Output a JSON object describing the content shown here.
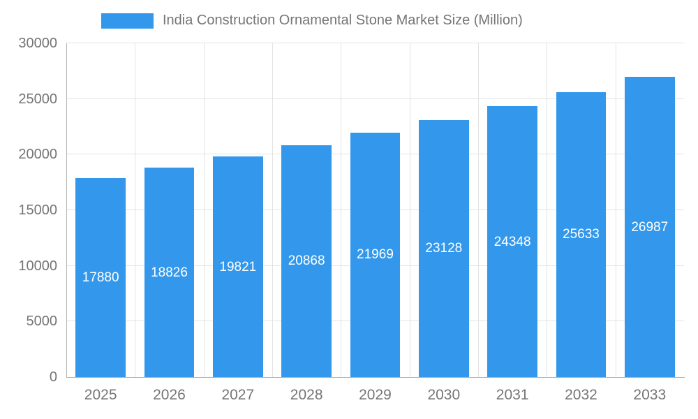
{
  "chart_data": {
    "type": "bar",
    "title": "India Construction Ornamental Stone Market Size (Million)",
    "categories": [
      "2025",
      "2026",
      "2027",
      "2028",
      "2029",
      "2030",
      "2031",
      "2032",
      "2033"
    ],
    "values": [
      17880,
      18826,
      19821,
      20868,
      21969,
      23128,
      24348,
      25633,
      26987
    ],
    "ylim": [
      0,
      30000
    ],
    "yticks": [
      0,
      5000,
      10000,
      15000,
      20000,
      25000,
      30000
    ],
    "grid": true,
    "legend_position": "top",
    "bar_color": "#3398EB",
    "value_label_color": "#FFFFFF",
    "axis_text_color": "#757575",
    "grid_color": "#E3E3E3",
    "axis_line_color": "#B3B3B3"
  }
}
